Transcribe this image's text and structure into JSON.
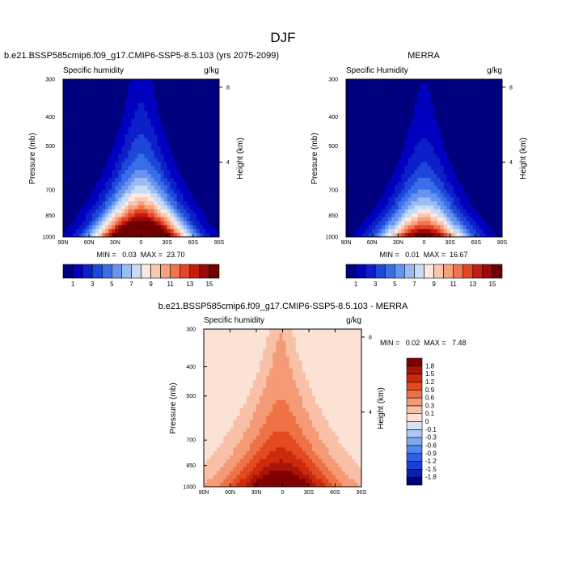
{
  "figure": {
    "title": "DJF"
  },
  "palettes": {
    "sequential": [
      "#00007f",
      "#0000bf",
      "#0c1fc9",
      "#1c47d9",
      "#3a6ee8",
      "#6794ee",
      "#9abcf3",
      "#c6dcf8",
      "#fbe9e2",
      "#fac7b0",
      "#f7a17e",
      "#f1744f",
      "#e54427",
      "#c41c11",
      "#9c0a07",
      "#700000"
    ],
    "difference": [
      "#00007f",
      "#0a1fb0",
      "#1b3fd0",
      "#2c61e3",
      "#5585ec",
      "#80a8f1",
      "#aac8f6",
      "#d3e4fa",
      "#fbe2d4",
      "#f8c0a6",
      "#f49a76",
      "#ee7246",
      "#e44a22",
      "#cc2a0d",
      "#a81407",
      "#800000"
    ]
  },
  "chart_data": [
    {
      "id": "panel1",
      "type": "heatmap",
      "title": "b.e21.BSSP585cmip6.f09_g17.CMIP6-SSP5-8.5.103 (yrs 2075-2099)",
      "left_label": "Specific humidity",
      "right_label": "g/kg",
      "ylabel": "Pressure (mb)",
      "y2label": "Height (km)",
      "x_ticks": [
        "90N",
        "60N",
        "30N",
        "0",
        "30S",
        "60S",
        "90S"
      ],
      "x_values": [
        90,
        60,
        30,
        0,
        -30,
        -60,
        -90
      ],
      "y_ticks": [
        "300",
        "400",
        "500",
        "700",
        "850",
        "1000"
      ],
      "y_values": [
        300,
        400,
        500,
        700,
        850,
        1000
      ],
      "y2_ticks": [
        "8",
        "4"
      ],
      "y2_values": [
        8,
        4
      ],
      "xlim": [
        90,
        -90
      ],
      "ylim": [
        1000,
        300
      ],
      "log_y": true,
      "min_label": "MIN =   0.03  MAX =  23.70",
      "min": 0.03,
      "max": 23.7,
      "palette": "sequential",
      "field": {
        "peak": 23.7,
        "center_lat": 0,
        "scale_height_mb": 255,
        "width_surface_deg": 36,
        "width_top_deg": 13,
        "upper_floor": 0.4,
        "floor": 0.03
      },
      "colorbar": {
        "orientation": "horizontal",
        "levels": [
          0,
          1,
          2,
          3,
          4,
          5,
          6,
          7,
          8,
          9,
          10,
          11,
          12,
          13,
          14,
          15,
          99
        ],
        "labels": [
          "1",
          "3",
          "5",
          "7",
          "9",
          "11",
          "13",
          "15"
        ],
        "label_values": [
          1,
          3,
          5,
          7,
          9,
          11,
          13,
          15
        ]
      }
    },
    {
      "id": "panel2",
      "type": "heatmap",
      "title": "MERRA",
      "left_label": "Specific Humidity",
      "right_label": "g/kg",
      "ylabel": "Pressure (mb)",
      "y2label": "Height (km)",
      "x_ticks": [
        "90N",
        "60N",
        "30N",
        "0",
        "30S",
        "60S",
        "90S"
      ],
      "x_values": [
        90,
        60,
        30,
        0,
        -30,
        -60,
        -90
      ],
      "y_ticks": [
        "300",
        "400",
        "500",
        "700",
        "850",
        "1000"
      ],
      "y_values": [
        300,
        400,
        500,
        700,
        850,
        1000
      ],
      "y2_ticks": [
        "8",
        "4"
      ],
      "y2_values": [
        8,
        4
      ],
      "xlim": [
        90,
        -90
      ],
      "ylim": [
        1000,
        300
      ],
      "log_y": true,
      "min_label": "MIN =   0.01  MAX =  16.67",
      "min": 0.01,
      "max": 16.67,
      "palette": "sequential",
      "field": {
        "peak": 16.67,
        "center_lat": 0,
        "scale_height_mb": 245,
        "width_surface_deg": 34,
        "width_top_deg": 11,
        "upper_floor": 0.3,
        "floor": 0.01
      },
      "colorbar": {
        "orientation": "horizontal",
        "levels": [
          0,
          1,
          2,
          3,
          4,
          5,
          6,
          7,
          8,
          9,
          10,
          11,
          12,
          13,
          14,
          15,
          99
        ],
        "labels": [
          "1",
          "3",
          "5",
          "7",
          "9",
          "11",
          "13",
          "15"
        ],
        "label_values": [
          1,
          3,
          5,
          7,
          9,
          11,
          13,
          15
        ]
      }
    },
    {
      "id": "panel3",
      "type": "heatmap",
      "title": "b.e21.BSSP585cmip6.f09_g17.CMIP6-SSP5-8.5.103 - MERRA",
      "left_label": "Specific humidity",
      "right_label": "g/kg",
      "ylabel": "Pressure (mb)",
      "y2label": "Height (km)",
      "x_ticks": [
        "90N",
        "60N",
        "30N",
        "0",
        "30S",
        "60S",
        "90S"
      ],
      "x_values": [
        90,
        60,
        30,
        0,
        -30,
        -60,
        -90
      ],
      "y_ticks": [
        "300",
        "400",
        "500",
        "700",
        "850",
        "1000"
      ],
      "y_values": [
        300,
        400,
        500,
        700,
        850,
        1000
      ],
      "y2_ticks": [
        "8",
        "4"
      ],
      "y2_values": [
        8,
        4
      ],
      "xlim": [
        90,
        -90
      ],
      "ylim": [
        1000,
        300
      ],
      "log_y": true,
      "min_label": "MIN =   0.02  MAX =   7.48",
      "min": 0.02,
      "max": 7.48,
      "palette": "difference",
      "field": {
        "peak": 2.4,
        "center_lat": 2,
        "scale_height_mb": 330,
        "width_surface_deg": 42,
        "width_top_deg": 9,
        "upper_floor": 0.1,
        "floor": 0.02
      },
      "colorbar": {
        "orientation": "vertical",
        "levels": [
          -99,
          -1.8,
          -1.5,
          -1.2,
          -0.9,
          -0.6,
          -0.3,
          -0.1,
          0,
          0.1,
          0.3,
          0.6,
          0.9,
          1.2,
          1.5,
          1.8,
          99
        ],
        "labels": [
          "-1.8",
          "-1.5",
          "-1.2",
          "-0.9",
          "-0.6",
          "-0.3",
          "-0.1",
          "0",
          "0.1",
          "0.3",
          "0.6",
          "0.9",
          "1.2",
          "1.5",
          "1.8"
        ],
        "label_values": [
          -1.8,
          -1.5,
          -1.2,
          -0.9,
          -0.6,
          -0.3,
          -0.1,
          0,
          0.1,
          0.3,
          0.6,
          0.9,
          1.2,
          1.5,
          1.8
        ]
      }
    }
  ]
}
